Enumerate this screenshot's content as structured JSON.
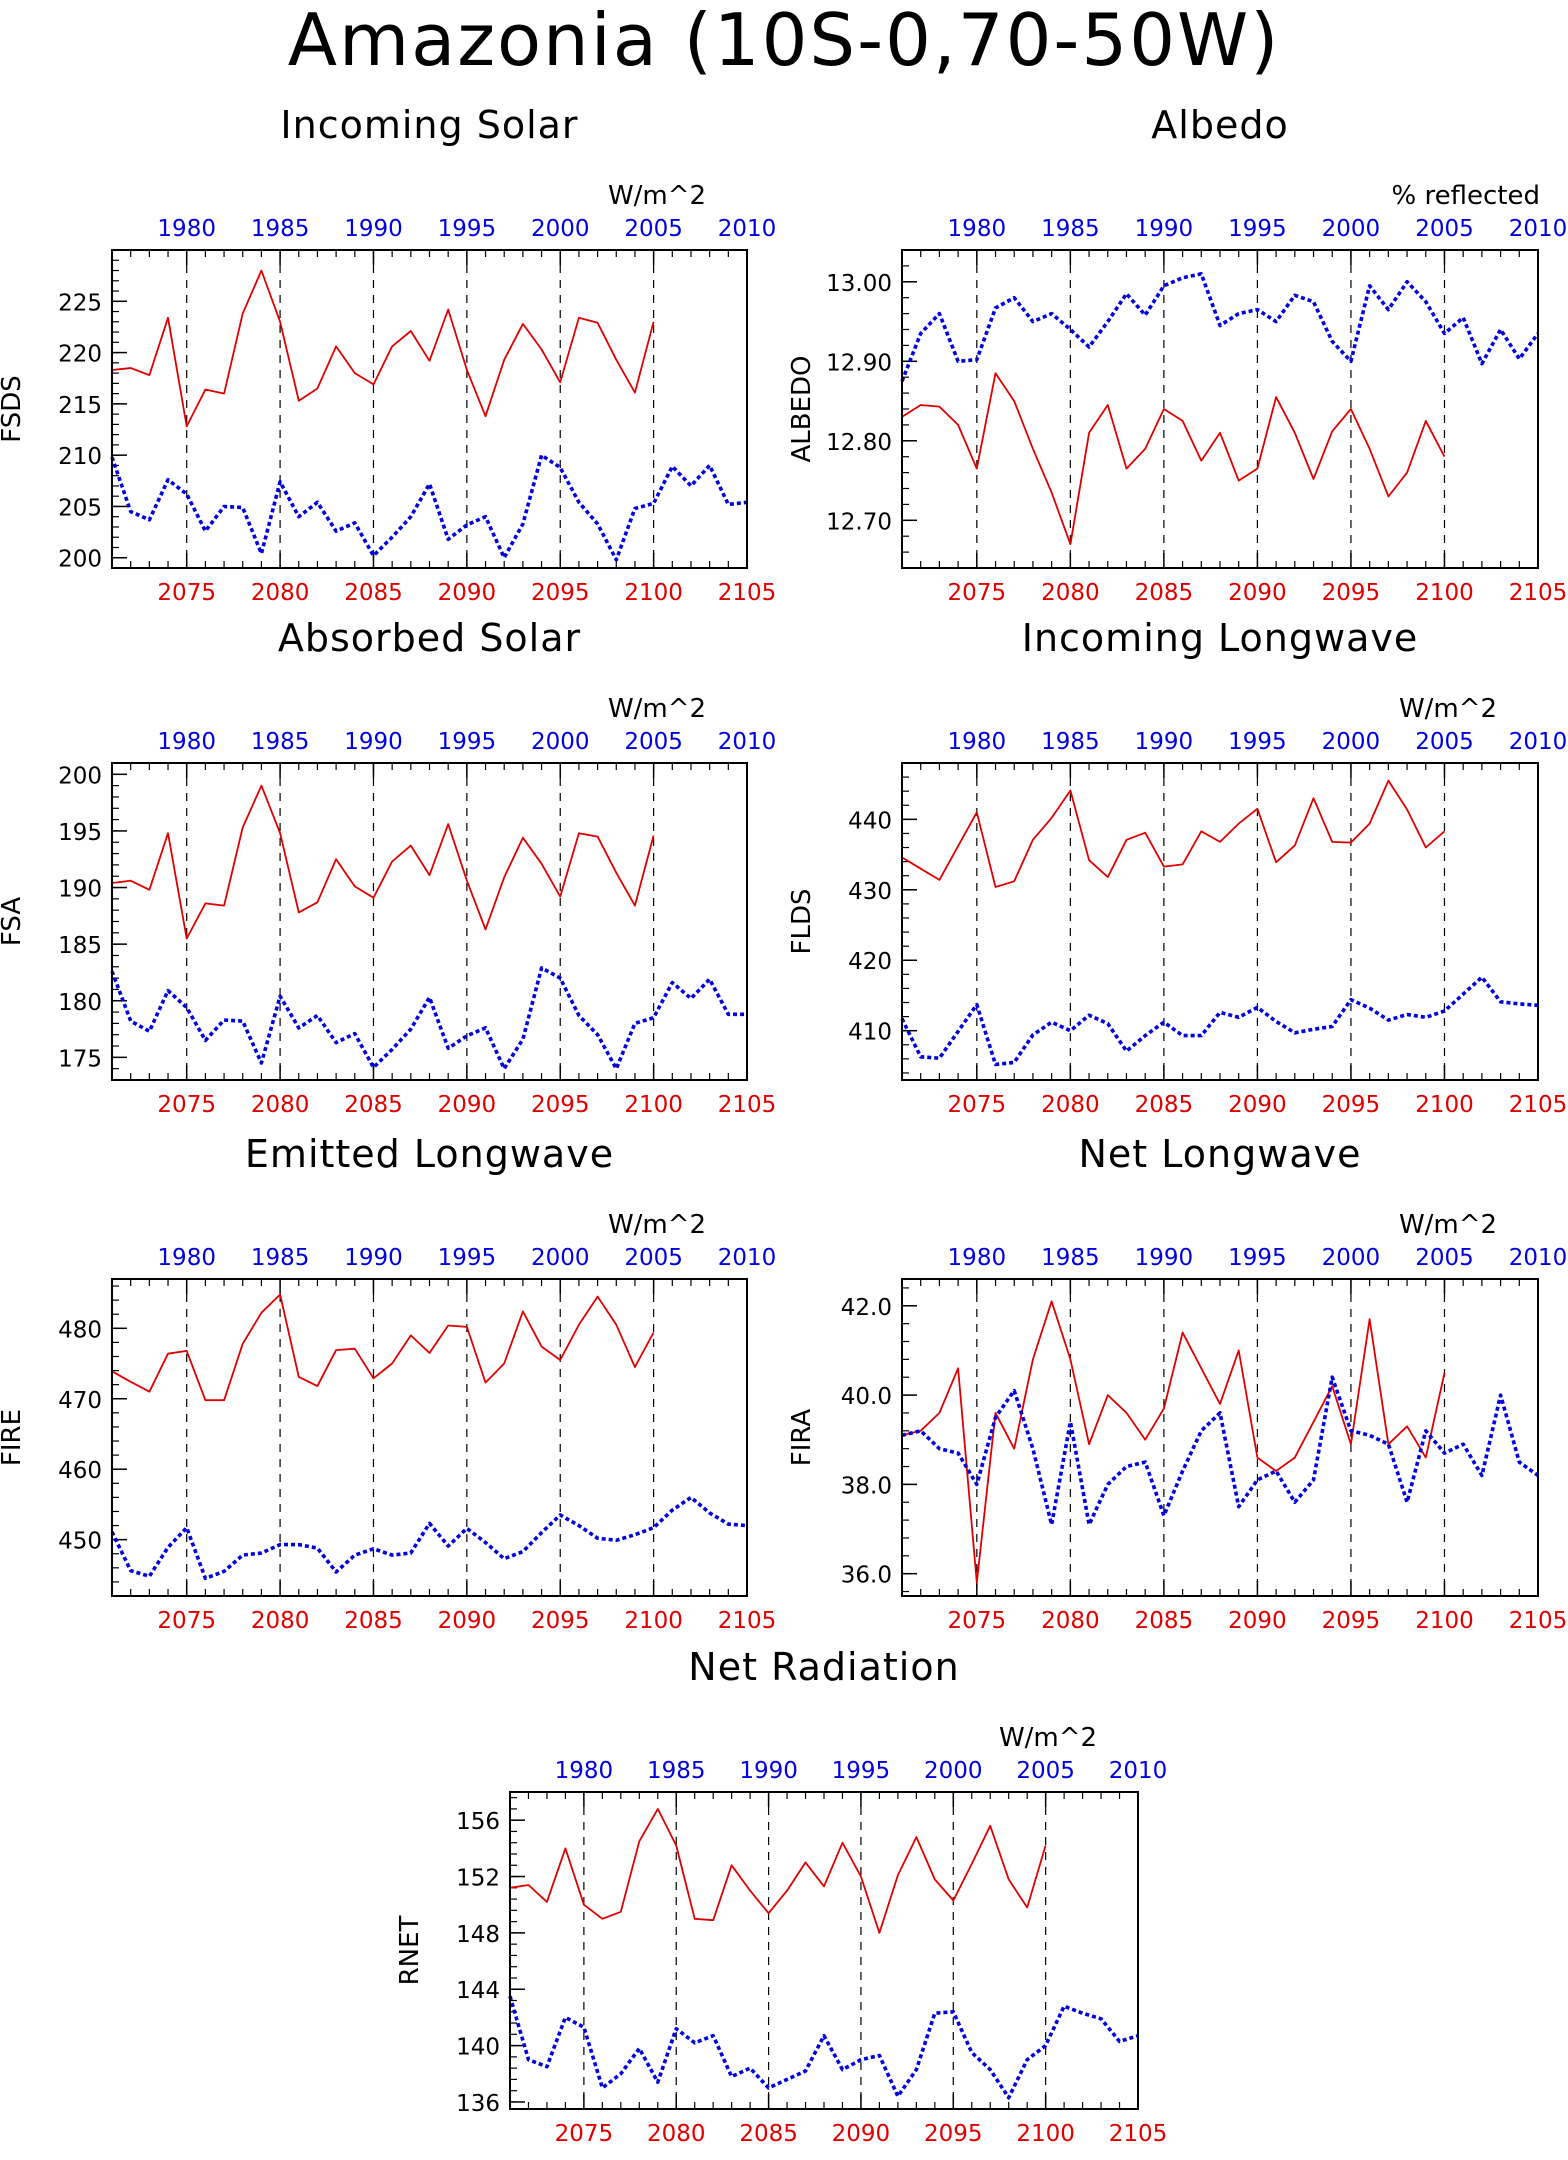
{
  "title": "Amazonia (10S-0,70-50W)",
  "colors": {
    "future": "#e00000",
    "historical": "#0000e0"
  },
  "chart_data": [
    {
      "type": "line",
      "title": "Incoming Solar",
      "ylabel": "FSDS",
      "units": "W/m^2",
      "ylim": [
        199,
        230
      ],
      "yticks": [
        200,
        205,
        210,
        215,
        220,
        225
      ],
      "x_bottom": {
        "label": "",
        "range": [
          2071,
          2105
        ],
        "ticks": [
          2075,
          2080,
          2085,
          2090,
          2095,
          2100,
          2105
        ]
      },
      "x_top": {
        "label": "",
        "range": [
          1976,
          2010
        ],
        "ticks": [
          1980,
          1985,
          1990,
          1995,
          2000,
          2005,
          2010
        ]
      },
      "dashed_vlines": [
        2075,
        2080,
        2085,
        2090,
        2095,
        2100
      ],
      "series": [
        {
          "style": "solid",
          "color": "#e00000",
          "x_start": 2071,
          "values": [
            218.3,
            218.5,
            217.8,
            223.4,
            212.8,
            216.4,
            216,
            223.8,
            228,
            223,
            215.3,
            216.5,
            220.6,
            218,
            216.9,
            220.6,
            222.1,
            219.2,
            224.2,
            218.3,
            213.8,
            219.3,
            222.8,
            220.3,
            217.1,
            223.4,
            222.9,
            219.3,
            216.1,
            223
          ]
        },
        {
          "style": "dotted",
          "color": "#0000e0",
          "x_start": 1976,
          "values": [
            209.8,
            204.5,
            203.7,
            207.6,
            206.2,
            202.6,
            205,
            204.9,
            200.4,
            207.4,
            204,
            205.4,
            202.6,
            203.4,
            200.2,
            202,
            204,
            207.2,
            201.8,
            203.2,
            204,
            200,
            203.3,
            210,
            208.8,
            205.4,
            203.3,
            199.8,
            204.8,
            205.3,
            208.9,
            207,
            209,
            205.2,
            205.4
          ]
        }
      ]
    },
    {
      "type": "line",
      "title": "Albedo",
      "ylabel": "ALBEDO",
      "units": "% reflected",
      "ylim": [
        12.64,
        13.04
      ],
      "yticks": [
        12.7,
        12.8,
        12.9,
        13.0
      ],
      "ytick_labels": [
        "12.70",
        "12.80",
        "12.90",
        "13.00"
      ],
      "x_bottom": {
        "label": "",
        "range": [
          2071,
          2105
        ],
        "ticks": [
          2075,
          2080,
          2085,
          2090,
          2095,
          2100,
          2105
        ]
      },
      "x_top": {
        "label": "",
        "range": [
          1976,
          2010
        ],
        "ticks": [
          1980,
          1985,
          1990,
          1995,
          2000,
          2005,
          2010
        ]
      },
      "dashed_vlines": [
        2075,
        2080,
        2085,
        2090,
        2095,
        2100
      ],
      "series": [
        {
          "style": "solid",
          "color": "#e00000",
          "x_start": 2071,
          "values": [
            12.83,
            12.845,
            12.843,
            12.82,
            12.765,
            12.885,
            12.85,
            12.79,
            12.735,
            12.67,
            12.81,
            12.845,
            12.765,
            12.79,
            12.84,
            12.825,
            12.775,
            12.81,
            12.75,
            12.765,
            12.855,
            12.81,
            12.752,
            12.812,
            12.84,
            12.79,
            12.73,
            12.76,
            12.825,
            12.78
          ]
        },
        {
          "style": "dotted",
          "color": "#0000e0",
          "x_start": 1976,
          "values": [
            12.875,
            12.935,
            12.96,
            12.9,
            12.902,
            12.967,
            12.98,
            12.95,
            12.96,
            12.94,
            12.918,
            12.95,
            12.985,
            12.958,
            12.995,
            13.005,
            13.01,
            12.945,
            12.96,
            12.965,
            12.95,
            12.983,
            12.975,
            12.925,
            12.9,
            12.995,
            12.965,
            13.0,
            12.975,
            12.935,
            12.955,
            12.897,
            12.94,
            12.903,
            12.935
          ]
        }
      ]
    },
    {
      "type": "line",
      "title": "Absorbed Solar",
      "ylabel": "FSA",
      "units": "W/m^2",
      "ylim": [
        173,
        201
      ],
      "yticks": [
        175,
        180,
        185,
        190,
        195,
        200
      ],
      "x_bottom": {
        "label": "",
        "range": [
          2071,
          2105
        ],
        "ticks": [
          2075,
          2080,
          2085,
          2090,
          2095,
          2100,
          2105
        ]
      },
      "x_top": {
        "label": "",
        "range": [
          1976,
          2010
        ],
        "ticks": [
          1980,
          1985,
          1990,
          1995,
          2000,
          2005,
          2010
        ]
      },
      "dashed_vlines": [
        2075,
        2080,
        2085,
        2090,
        2095,
        2100
      ],
      "series": [
        {
          "style": "solid",
          "color": "#e00000",
          "x_start": 2071,
          "values": [
            190.4,
            190.6,
            189.8,
            194.8,
            185.5,
            188.6,
            188.4,
            195.3,
            199,
            194.8,
            187.8,
            188.7,
            192.5,
            190.1,
            189.1,
            192.3,
            193.7,
            191.1,
            195.6,
            190.6,
            186.3,
            190.9,
            194.4,
            192.1,
            189.2,
            194.8,
            194.5,
            191.3,
            188.4,
            194.6
          ]
        },
        {
          "style": "dotted",
          "color": "#0000e0",
          "x_start": 1976,
          "values": [
            182.6,
            178.2,
            177.3,
            180.9,
            179.4,
            176.5,
            178.3,
            178.2,
            174.5,
            180.4,
            177.6,
            178.7,
            176.3,
            177.1,
            174.1,
            175.7,
            177.5,
            180.3,
            175.8,
            176.9,
            177.6,
            174,
            176.6,
            182.9,
            182,
            178.7,
            177,
            174,
            178,
            178.5,
            181.6,
            180.2,
            181.9,
            178.8,
            178.8
          ]
        }
      ]
    },
    {
      "type": "line",
      "title": "Incoming Longwave",
      "ylabel": "FLDS",
      "units": "W/m^2",
      "ylim": [
        403,
        448
      ],
      "yticks": [
        410,
        420,
        430,
        440
      ],
      "x_bottom": {
        "label": "",
        "range": [
          2071,
          2105
        ],
        "ticks": [
          2075,
          2080,
          2085,
          2090,
          2095,
          2100,
          2105
        ]
      },
      "x_top": {
        "label": "",
        "range": [
          1976,
          2010
        ],
        "ticks": [
          1980,
          1985,
          1990,
          1995,
          2000,
          2005,
          2010
        ]
      },
      "dashed_vlines": [
        2075,
        2080,
        2085,
        2090,
        2095,
        2100
      ],
      "series": [
        {
          "style": "solid",
          "color": "#e00000",
          "x_start": 2071,
          "values": [
            434.6,
            433,
            431.4,
            436.2,
            441,
            430.4,
            431.2,
            437.1,
            440.2,
            444.1,
            434.2,
            431.8,
            437.1,
            438.1,
            433.3,
            433.6,
            438.3,
            436.8,
            439.4,
            441.5,
            433.9,
            436.3,
            443,
            436.8,
            436.7,
            439.4,
            445.5,
            441.4,
            436,
            438.3
          ]
        },
        {
          "style": "dotted",
          "color": "#0000e0",
          "x_start": 1976,
          "values": [
            411.7,
            406.3,
            406.1,
            409.9,
            413.7,
            405.2,
            405.5,
            409.4,
            411.2,
            410,
            412.2,
            411,
            407.1,
            409.3,
            411.2,
            409.3,
            409.3,
            412.6,
            411.9,
            413.3,
            411.3,
            409.7,
            410.2,
            410.6,
            414.4,
            413.2,
            411.5,
            412.3,
            411.9,
            412.8,
            415.2,
            417.6,
            414.1,
            413.8,
            413.6
          ]
        }
      ]
    },
    {
      "type": "line",
      "title": "Emitted Longwave",
      "ylabel": "FIRE",
      "units": "W/m^2",
      "ylim": [
        442,
        487
      ],
      "yticks": [
        450,
        460,
        470,
        480
      ],
      "x_bottom": {
        "label": "",
        "range": [
          2071,
          2105
        ],
        "ticks": [
          2075,
          2080,
          2085,
          2090,
          2095,
          2100,
          2105
        ]
      },
      "x_top": {
        "label": "",
        "range": [
          1976,
          2010
        ],
        "ticks": [
          1980,
          1985,
          1990,
          1995,
          2000,
          2005,
          2010
        ]
      },
      "dashed_vlines": [
        2075,
        2080,
        2085,
        2090,
        2095,
        2100
      ],
      "series": [
        {
          "style": "solid",
          "color": "#e00000",
          "x_start": 2071,
          "values": [
            473.9,
            472.4,
            471,
            476.4,
            476.8,
            469.8,
            469.8,
            477.8,
            482.2,
            484.8,
            473.1,
            471.8,
            476.9,
            477.1,
            472.9,
            475,
            479,
            476.5,
            480.4,
            480.2,
            472.3,
            475,
            482.4,
            477.4,
            475.5,
            480.5,
            484.5,
            480.5,
            474.5,
            479.4
          ]
        },
        {
          "style": "dotted",
          "color": "#0000e0",
          "x_start": 1976,
          "values": [
            451.1,
            445.6,
            444.8,
            448.9,
            451.7,
            444.5,
            445.5,
            447.8,
            448.1,
            449.3,
            449.3,
            448.8,
            445.4,
            447.8,
            448.7,
            447.8,
            448.1,
            452.3,
            449.1,
            451.6,
            449.6,
            447.3,
            448.3,
            451,
            453.5,
            452,
            450.2,
            449.9,
            450.7,
            451.7,
            454.2,
            456,
            453.8,
            452.2,
            452
          ]
        }
      ]
    },
    {
      "type": "line",
      "title": "Net Longwave",
      "ylabel": "FIRA",
      "units": "W/m^2",
      "ylim": [
        35.5,
        42.6
      ],
      "yticks": [
        36,
        38,
        40,
        42
      ],
      "ytick_labels": [
        "36.0",
        "38.0",
        "40.0",
        "42.0"
      ],
      "x_bottom": {
        "label": "",
        "range": [
          2071,
          2105
        ],
        "ticks": [
          2075,
          2080,
          2085,
          2090,
          2095,
          2100,
          2105
        ]
      },
      "x_top": {
        "label": "",
        "range": [
          1976,
          2010
        ],
        "ticks": [
          1980,
          1985,
          1990,
          1995,
          2000,
          2005,
          2010
        ]
      },
      "dashed_vlines": [
        2075,
        2080,
        2085,
        2090,
        2095,
        2100
      ],
      "series": [
        {
          "style": "solid",
          "color": "#e00000",
          "x_start": 2071,
          "values": [
            39.1,
            39.2,
            39.6,
            40.6,
            35.8,
            39.6,
            38.8,
            40.8,
            42.1,
            40.8,
            38.9,
            40,
            39.6,
            39,
            39.7,
            41.4,
            40.6,
            39.8,
            41,
            38.6,
            38.3,
            38.6,
            39.4,
            40.2,
            38.9,
            41.7,
            38.9,
            39.3,
            38.6,
            40.5
          ]
        },
        {
          "style": "dotted",
          "color": "#0000e0",
          "x_start": 1976,
          "values": [
            39.1,
            39.2,
            38.8,
            38.7,
            38,
            39.5,
            40.1,
            38.8,
            37.1,
            39.4,
            37.1,
            38,
            38.4,
            38.5,
            37.3,
            38.3,
            39.2,
            39.6,
            37.5,
            38.1,
            38.3,
            37.6,
            38.1,
            40.4,
            39.2,
            39.1,
            38.9,
            37.6,
            39.2,
            38.7,
            38.9,
            38.2,
            40,
            38.5,
            38.2
          ]
        }
      ]
    },
    {
      "type": "line",
      "title": "Net Radiation",
      "ylabel": "RNET",
      "units": "W/m^2",
      "ylim": [
        135.5,
        158
      ],
      "yticks": [
        136,
        140,
        144,
        148,
        152,
        156
      ],
      "x_bottom": {
        "label": "",
        "range": [
          2071,
          2105
        ],
        "ticks": [
          2075,
          2080,
          2085,
          2090,
          2095,
          2100,
          2105
        ]
      },
      "x_top": {
        "label": "",
        "range": [
          1976,
          2010
        ],
        "ticks": [
          1980,
          1985,
          1990,
          1995,
          2000,
          2005,
          2010
        ]
      },
      "dashed_vlines": [
        2075,
        2080,
        2085,
        2090,
        2095,
        2100
      ],
      "series": [
        {
          "style": "solid",
          "color": "#e00000",
          "x_start": 2071,
          "values": [
            151.2,
            151.4,
            150.2,
            154,
            150,
            149,
            149.5,
            154.5,
            156.8,
            154.2,
            149,
            148.9,
            152.8,
            151,
            149.4,
            151,
            153,
            151.3,
            154.4,
            152,
            148,
            152.1,
            154.8,
            151.8,
            150.3,
            152.9,
            155.6,
            151.8,
            149.8,
            154.2
          ]
        },
        {
          "style": "dotted",
          "color": "#0000e0",
          "x_start": 1976,
          "values": [
            143.5,
            139,
            138.5,
            142,
            141.3,
            137,
            138,
            139.8,
            137.4,
            141.2,
            140.2,
            140.7,
            137.8,
            138.4,
            137,
            137.6,
            138.2,
            140.7,
            138.3,
            139,
            139.3,
            136.4,
            138.3,
            142.3,
            142.4,
            139.5,
            138.3,
            136.3,
            139,
            140,
            142.8,
            142.3,
            141.9,
            140.3,
            140.7
          ]
        }
      ]
    }
  ]
}
